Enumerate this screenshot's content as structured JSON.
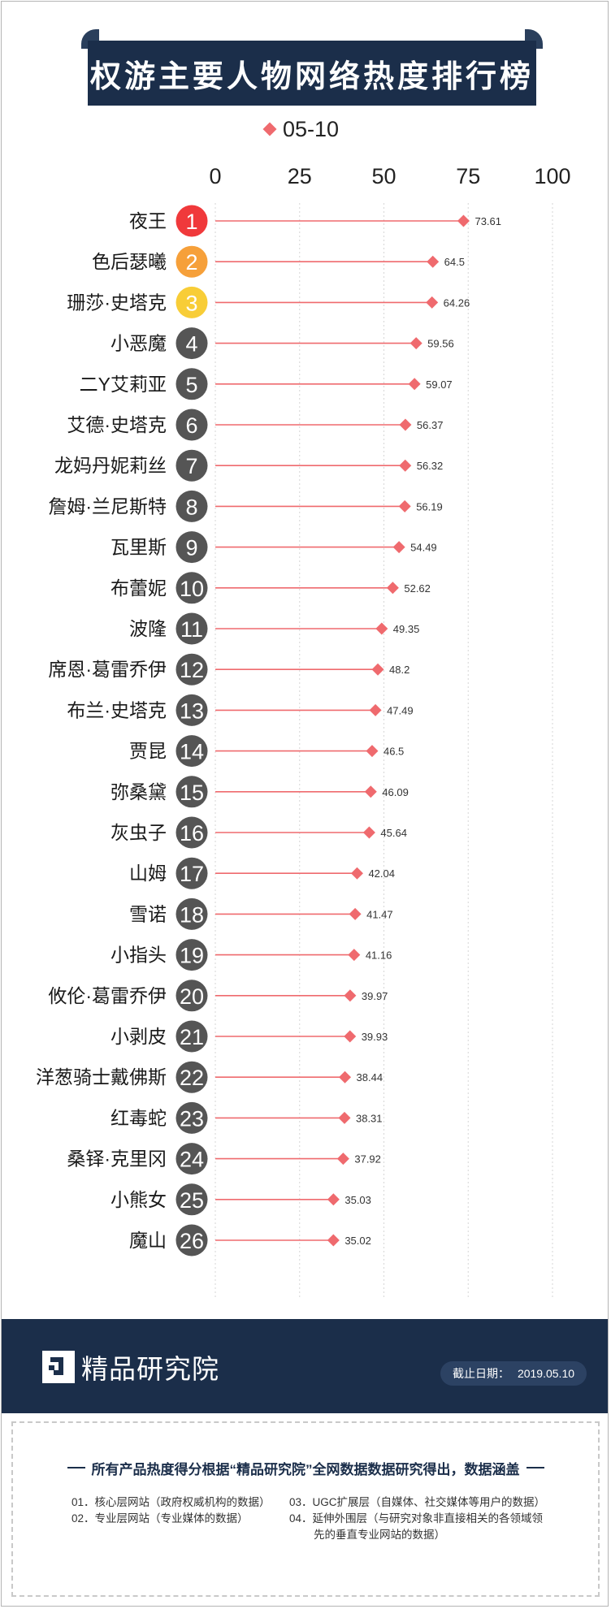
{
  "title": "权游主要人物网络热度排行榜",
  "legend": {
    "label": "05-10",
    "color": "#ef6a6e"
  },
  "chart_data": {
    "type": "scatter",
    "title": "权游主要人物网络热度排行榜",
    "series": [
      {
        "name": "05-10"
      }
    ],
    "xlim": [
      0,
      100
    ],
    "xticks": [
      "0",
      "25",
      "50",
      "75",
      "100"
    ],
    "grid": true,
    "legend_position": "top-center",
    "items": [
      {
        "rank": "1",
        "name": "夜王",
        "value": 73.61,
        "label": "73.61"
      },
      {
        "rank": "2",
        "name": "色后瑟曦",
        "value": 64.5,
        "label": "64.5"
      },
      {
        "rank": "3",
        "name": "珊莎·史塔克",
        "value": 64.26,
        "label": "64.26"
      },
      {
        "rank": "4",
        "name": "小恶魔",
        "value": 59.56,
        "label": "59.56"
      },
      {
        "rank": "5",
        "name": "二Y艾莉亚",
        "value": 59.07,
        "label": "59.07"
      },
      {
        "rank": "6",
        "name": "艾德·史塔克",
        "value": 56.37,
        "label": "56.37"
      },
      {
        "rank": "7",
        "name": "龙妈丹妮莉丝",
        "value": 56.32,
        "label": "56.32"
      },
      {
        "rank": "8",
        "name": "詹姆·兰尼斯特",
        "value": 56.19,
        "label": "56.19"
      },
      {
        "rank": "9",
        "name": "瓦里斯",
        "value": 54.49,
        "label": "54.49"
      },
      {
        "rank": "10",
        "name": "布蕾妮",
        "value": 52.62,
        "label": "52.62"
      },
      {
        "rank": "11",
        "name": "波隆",
        "value": 49.35,
        "label": "49.35"
      },
      {
        "rank": "12",
        "name": "席恩·葛雷乔伊",
        "value": 48.2,
        "label": "48.2"
      },
      {
        "rank": "13",
        "name": "布兰·史塔克",
        "value": 47.49,
        "label": "47.49"
      },
      {
        "rank": "14",
        "name": "贾昆",
        "value": 46.5,
        "label": "46.5"
      },
      {
        "rank": "15",
        "name": "弥桑黛",
        "value": 46.09,
        "label": "46.09"
      },
      {
        "rank": "16",
        "name": "灰虫子",
        "value": 45.64,
        "label": "45.64"
      },
      {
        "rank": "17",
        "name": "山姆",
        "value": 42.04,
        "label": "42.04"
      },
      {
        "rank": "18",
        "name": "雪诺",
        "value": 41.47,
        "label": "41.47"
      },
      {
        "rank": "19",
        "name": "小指头",
        "value": 41.16,
        "label": "41.16"
      },
      {
        "rank": "20",
        "name": "攸伦·葛雷乔伊",
        "value": 39.97,
        "label": "39.97"
      },
      {
        "rank": "21",
        "name": "小剥皮",
        "value": 39.93,
        "label": "39.93"
      },
      {
        "rank": "22",
        "name": "洋葱骑士戴佛斯",
        "value": 38.44,
        "label": "38.44"
      },
      {
        "rank": "23",
        "name": "红毒蛇",
        "value": 38.31,
        "label": "38.31"
      },
      {
        "rank": "24",
        "name": "桑铎·克里冈",
        "value": 37.92,
        "label": "37.92"
      },
      {
        "rank": "25",
        "name": "小熊女",
        "value": 35.03,
        "label": "35.03"
      },
      {
        "rank": "26",
        "name": "魔山",
        "value": 35.02,
        "label": "35.02"
      }
    ]
  },
  "colors": {
    "marker": "#ef6a6e",
    "rank_1": "#f0393b",
    "rank_2": "#f6a03a",
    "rank_3": "#f8cd37",
    "rank_other": "#555555",
    "navy": "#1b2e4a",
    "grid": "#d6d6d6"
  },
  "footer": {
    "brand": "精品研究院",
    "date_label": "截止日期：",
    "date_value": "2019.05.10",
    "note_title": "所有产品热度得分根据“精品研究院”全网数据数据研究得出，数据涵盖",
    "notes": [
      "01．核心层网站（政府权威机构的数据）",
      "02．专业层网站（专业媒体的数据）",
      "03．UGC扩展层（自媒体、社交媒体等用户的数据）",
      "04．延伸外围层（与研究对象非直接相关的各领域领",
      "先的垂直专业网站的数据）"
    ]
  }
}
